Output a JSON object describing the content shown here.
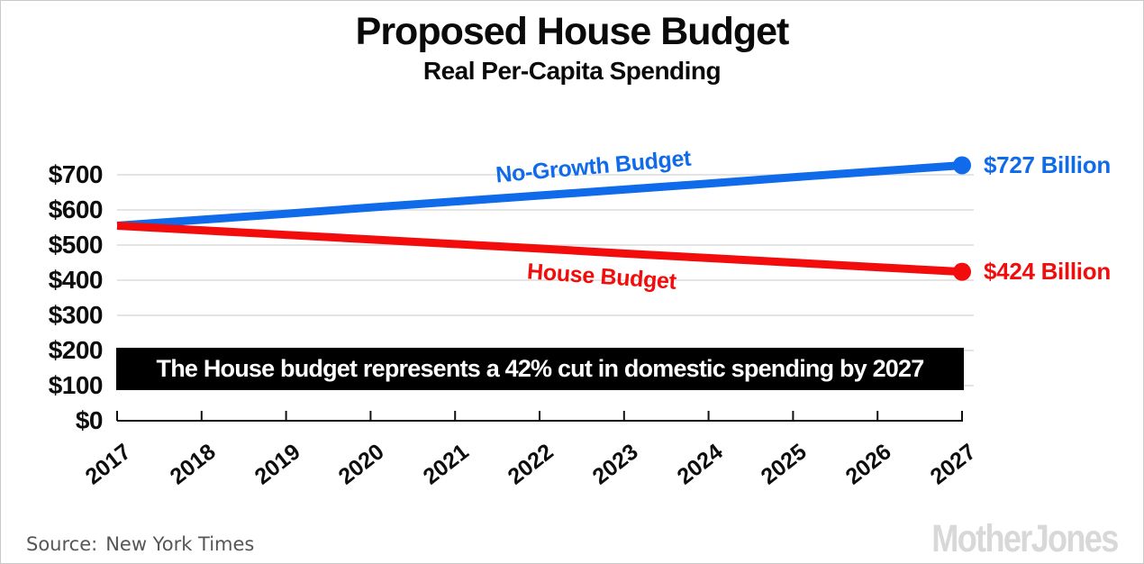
{
  "page": {
    "background": "#ffffff",
    "border_color": "#c9c9c9"
  },
  "header": {
    "title": "Proposed House Budget",
    "subtitle": "Real Per-Capita Spending"
  },
  "chart_data": {
    "type": "line",
    "title": "Proposed House Budget",
    "subtitle": "Real Per-Capita Spending",
    "x": [
      2017,
      2018,
      2019,
      2020,
      2021,
      2022,
      2023,
      2024,
      2025,
      2026,
      2027
    ],
    "series": [
      {
        "id": "no-growth-budget",
        "name": "No-Growth Budget",
        "color": "#0f6be9",
        "values": [
          555,
          572,
          589,
          607,
          624,
          641,
          658,
          675,
          693,
          710,
          727
        ],
        "end_label": "$727 Billion"
      },
      {
        "id": "house-budget",
        "name": "House Budget",
        "color": "#f20c0c",
        "values": [
          555,
          542,
          529,
          516,
          503,
          490,
          476,
          463,
          450,
          437,
          424
        ],
        "end_label": "$424 Billion"
      }
    ],
    "yticks": [
      {
        "value": 0,
        "label": "$0"
      },
      {
        "value": 100,
        "label": "$100"
      },
      {
        "value": 200,
        "label": "$200"
      },
      {
        "value": 300,
        "label": "$300"
      },
      {
        "value": 400,
        "label": "$400"
      },
      {
        "value": 500,
        "label": "$500"
      },
      {
        "value": 600,
        "label": "$600"
      },
      {
        "value": 700,
        "label": "$700"
      }
    ],
    "ylim": [
      0,
      760
    ],
    "xlabel": "",
    "ylabel": "",
    "grid": "horizontal",
    "gridline_color": "#e4e4e4",
    "axis_color": "#111111",
    "annotation": "The House budget represents a 42% cut in domestic spending by 2027"
  },
  "annotation_banner": {
    "bg": "#000000",
    "fg": "#ffffff"
  },
  "footer": {
    "source_label": "Source:",
    "source_value": "New York Times",
    "logo_text": "MotherJones"
  }
}
